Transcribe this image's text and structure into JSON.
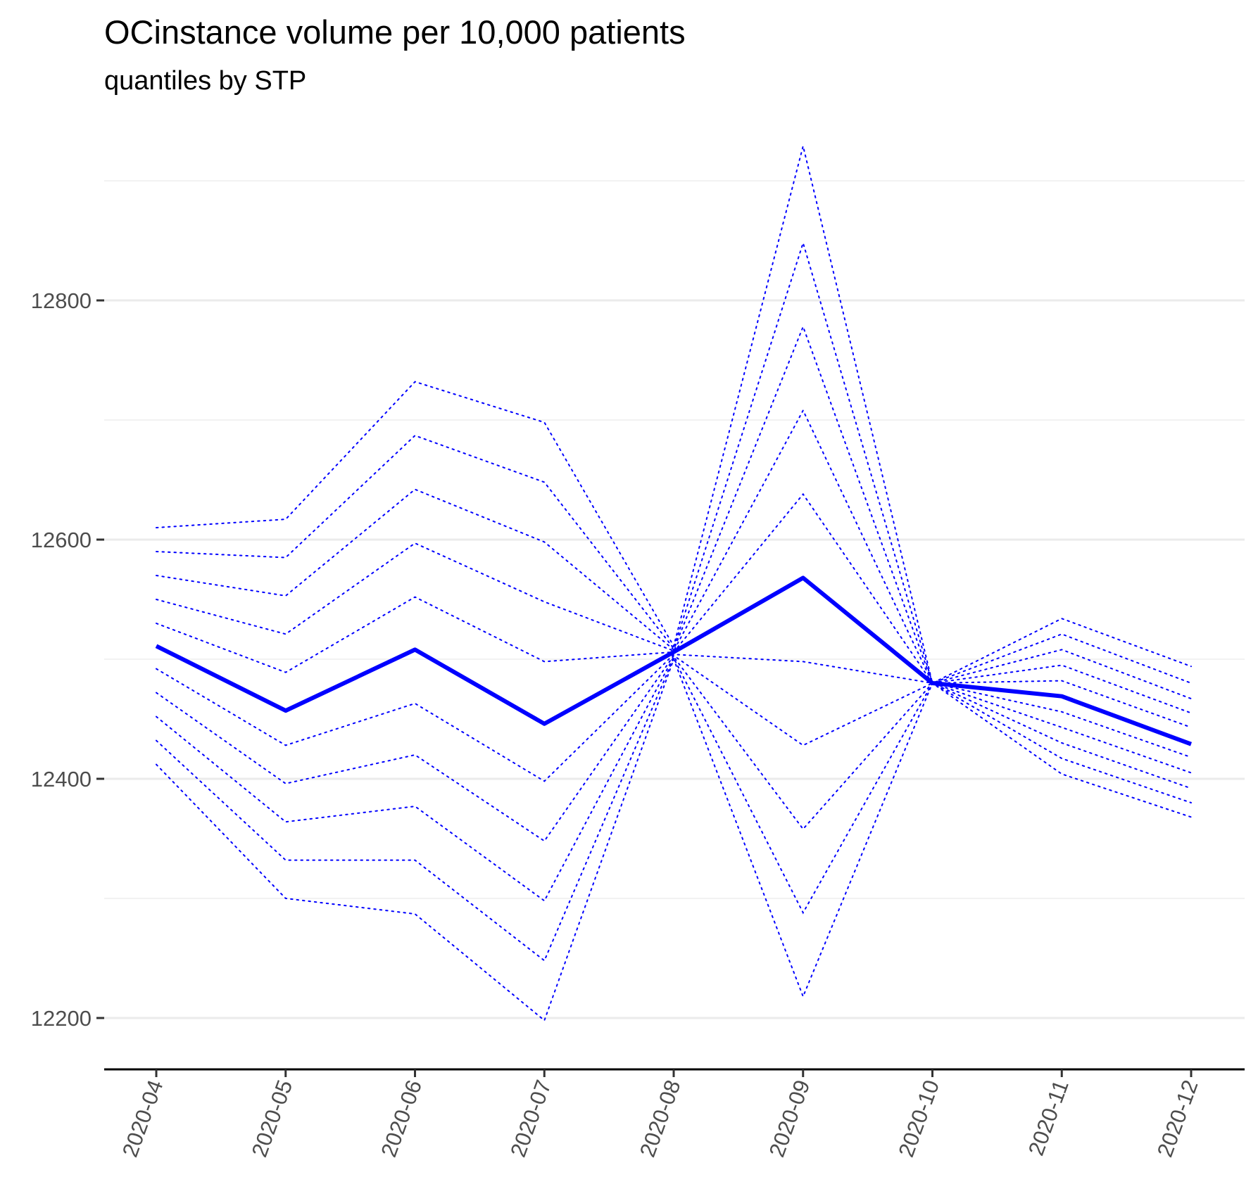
{
  "chart_data": {
    "type": "line",
    "title": "OCinstance volume per 10,000 patients",
    "subtitle": "quantiles by STP",
    "xlabel": "",
    "ylabel": "",
    "categories": [
      "2020-04",
      "2020-05",
      "2020-06",
      "2020-07",
      "2020-08",
      "2020-09",
      "2020-10",
      "2020-11",
      "2020-12"
    ],
    "y_ticks": [
      12200,
      12400,
      12600,
      12800
    ],
    "ylim": [
      12160,
      12960
    ],
    "grid": "horizontal major and minor",
    "legend": "none",
    "median_color": "#0000ff",
    "quantile_color": "#0000ff",
    "median": [
      12511,
      12457,
      12508,
      12446,
      12506,
      12568,
      12480,
      12469,
      12429
    ],
    "quantiles": [
      [
        12610,
        12617,
        12732,
        12698,
        12511,
        12929,
        12480,
        12534,
        12494
      ],
      [
        12590,
        12585,
        12687,
        12648,
        12509,
        12848,
        12480,
        12521,
        12480
      ],
      [
        12570,
        12553,
        12642,
        12598,
        12508,
        12778,
        12480,
        12508,
        12467
      ],
      [
        12550,
        12521,
        12597,
        12548,
        12507,
        12708,
        12480,
        12495,
        12455
      ],
      [
        12530,
        12489,
        12552,
        12498,
        12506,
        12638,
        12480,
        12482,
        12443
      ],
      [
        12492,
        12428,
        12463,
        12398,
        12504,
        12498,
        12480,
        12456,
        12418
      ],
      [
        12472,
        12396,
        12420,
        12348,
        12503,
        12428,
        12480,
        12443,
        12405
      ],
      [
        12452,
        12364,
        12377,
        12298,
        12502,
        12358,
        12480,
        12430,
        12392
      ],
      [
        12432,
        12332,
        12332,
        12248,
        12501,
        12288,
        12480,
        12417,
        12380
      ],
      [
        12412,
        12300,
        12287,
        12198,
        12500,
        12218,
        12480,
        12404,
        12368
      ]
    ]
  }
}
